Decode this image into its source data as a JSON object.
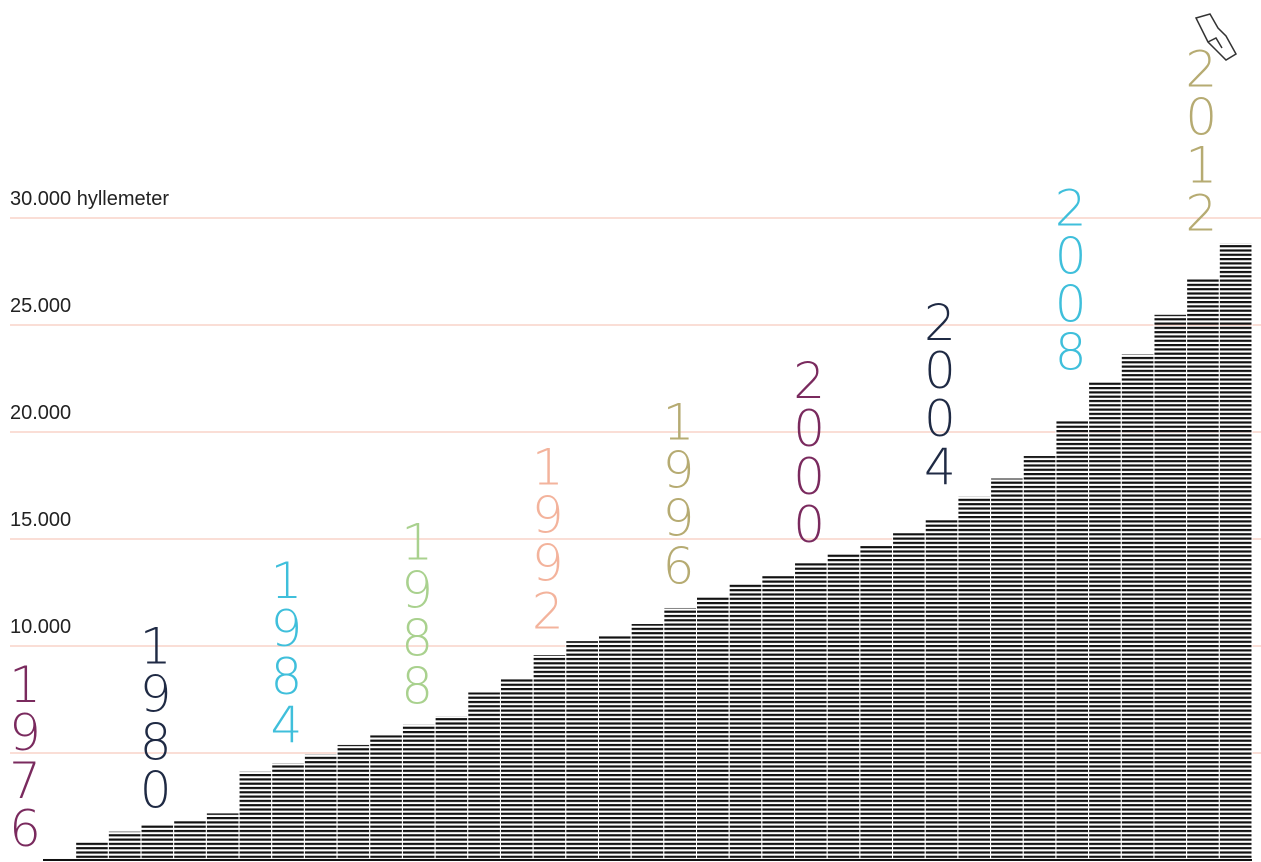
{
  "chart_data": {
    "type": "bar",
    "categories": [
      "1976",
      null,
      null,
      null,
      "1980",
      null,
      null,
      null,
      "1984",
      null,
      null,
      null,
      "1988",
      null,
      null,
      null,
      "1992",
      null,
      null,
      null,
      "1996",
      null,
      null,
      null,
      "2000",
      null,
      null,
      null,
      "2004",
      null,
      null,
      null,
      "2008",
      null,
      null,
      null,
      "2012"
    ],
    "values": [
      100,
      850,
      1350,
      1700,
      1900,
      2200,
      4150,
      4550,
      4950,
      5400,
      5850,
      6350,
      6750,
      7850,
      8500,
      9600,
      10250,
      10500,
      11050,
      11800,
      12350,
      12950,
      13300,
      13900,
      14300,
      14700,
      15300,
      15950,
      17000,
      17850,
      18900,
      20550,
      22350,
      23650,
      25500,
      27150,
      28850
    ],
    "color": "#111111",
    "label_colors": [
      "#7a2a5e",
      "#1f2a44",
      "#3fbfdb",
      "#a9d18e",
      "#f3b39c",
      "#b6ab72",
      "#7a2a5e",
      "#1f2a44",
      "#3fbfdb",
      "#b6ab72"
    ],
    "ylim": [
      0,
      40000
    ],
    "yticks": [
      {
        "value": 5000,
        "label": null
      },
      {
        "value": 10000,
        "label": "10.000"
      },
      {
        "value": 15000,
        "label": "15.000"
      },
      {
        "value": 20000,
        "label": "20.000"
      },
      {
        "value": 25000,
        "label": "25.000"
      },
      {
        "value": 30000,
        "label": "30.000 hyllemeter"
      }
    ],
    "grid": true,
    "grid_color": "#f4bcae"
  }
}
